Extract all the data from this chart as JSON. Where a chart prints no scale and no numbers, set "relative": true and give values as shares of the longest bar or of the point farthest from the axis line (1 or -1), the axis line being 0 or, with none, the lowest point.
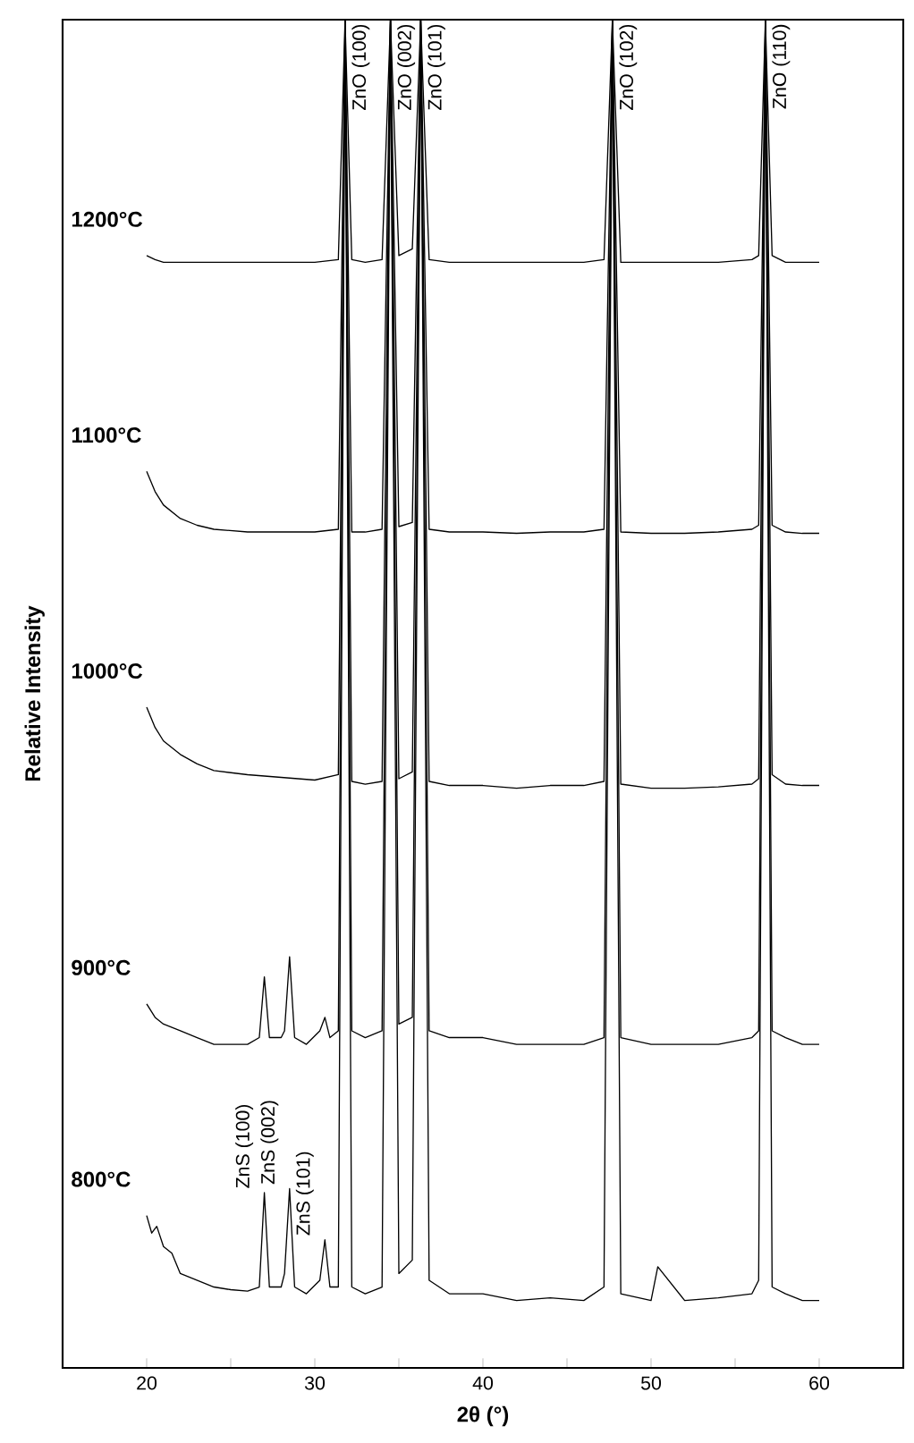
{
  "chart_data": {
    "type": "line",
    "relative": true,
    "xlabel": "2θ (°)",
    "ylabel": "Relative Intensity",
    "xlim": [
      15,
      65
    ],
    "xticks": [
      20,
      {
        "value": 25,
        "label": null
      },
      30,
      {
        "value": 35,
        "label": null
      },
      40,
      {
        "value": 45,
        "label": null
      },
      50,
      {
        "value": 55,
        "label": null
      },
      60
    ],
    "series": [
      {
        "name": "1200°C",
        "color": "#000000",
        "x": [
          20,
          20.5,
          21,
          22,
          23,
          24,
          26,
          28,
          30,
          31.4,
          31.8,
          32.2,
          33,
          34,
          34.5,
          35,
          35.8,
          36.3,
          36.8,
          38,
          40,
          42,
          44,
          46,
          47.2,
          47.7,
          48.2,
          50,
          52,
          54,
          56,
          56.4,
          56.8,
          57.2,
          58,
          59,
          60
        ],
        "values": [
          0.825,
          0.822,
          0.82,
          0.82,
          0.82,
          0.82,
          0.82,
          0.82,
          0.82,
          0.822,
          1,
          0.822,
          0.82,
          0.822,
          1,
          0.825,
          0.83,
          1,
          0.822,
          0.82,
          0.82,
          0.82,
          0.82,
          0.82,
          0.822,
          1,
          0.82,
          0.82,
          0.82,
          0.82,
          0.822,
          0.825,
          1,
          0.825,
          0.82,
          0.82,
          0.82
        ]
      },
      {
        "name": "1100°C",
        "color": "#000000",
        "x": [
          20,
          20.5,
          21,
          22,
          23,
          24,
          26,
          28,
          30,
          31.4,
          31.8,
          32.2,
          33,
          34,
          34.5,
          35,
          35.8,
          36.3,
          36.8,
          38,
          40,
          42,
          44,
          46,
          47.2,
          47.7,
          48.2,
          50,
          52,
          54,
          56,
          56.4,
          56.8,
          57.2,
          58,
          59,
          60
        ],
        "values": [
          0.665,
          0.65,
          0.64,
          0.63,
          0.625,
          0.622,
          0.62,
          0.62,
          0.62,
          0.622,
          1,
          0.62,
          0.62,
          0.622,
          1,
          0.624,
          0.627,
          1,
          0.622,
          0.62,
          0.62,
          0.619,
          0.62,
          0.62,
          0.622,
          1,
          0.62,
          0.619,
          0.619,
          0.62,
          0.622,
          0.625,
          1,
          0.625,
          0.62,
          0.619,
          0.619
        ]
      },
      {
        "name": "1000°C",
        "color": "#000000",
        "x": [
          20,
          20.5,
          21,
          22,
          23,
          24,
          26,
          28,
          30,
          31.4,
          31.8,
          32.2,
          33,
          34,
          34.5,
          35,
          35.8,
          36.3,
          36.8,
          38,
          40,
          42,
          44,
          46,
          47.2,
          47.7,
          48.2,
          50,
          52,
          54,
          56,
          56.4,
          56.8,
          57.2,
          58,
          59,
          60
        ],
        "values": [
          0.49,
          0.475,
          0.465,
          0.455,
          0.448,
          0.443,
          0.44,
          0.438,
          0.436,
          0.44,
          1,
          0.435,
          0.433,
          0.435,
          1,
          0.437,
          0.442,
          1,
          0.435,
          0.432,
          0.432,
          0.43,
          0.432,
          0.432,
          0.435,
          1,
          0.433,
          0.43,
          0.43,
          0.431,
          0.433,
          0.437,
          1,
          0.44,
          0.433,
          0.432,
          0.432
        ]
      },
      {
        "name": "900°C",
        "color": "#000000",
        "x": [
          20,
          20.5,
          21,
          22,
          23,
          24,
          25,
          26,
          26.7,
          27,
          27.3,
          28,
          28.2,
          28.5,
          28.8,
          29.5,
          30.3,
          30.6,
          30.9,
          31.4,
          31.8,
          32.2,
          33,
          34,
          34.5,
          35,
          35.8,
          36.3,
          36.8,
          38,
          40,
          42,
          44,
          46,
          47.2,
          47.7,
          48.2,
          50,
          52,
          54,
          56,
          56.4,
          56.8,
          57.2,
          58,
          59,
          60
        ],
        "values": [
          0.27,
          0.26,
          0.255,
          0.25,
          0.245,
          0.24,
          0.24,
          0.24,
          0.245,
          0.29,
          0.245,
          0.245,
          0.25,
          0.305,
          0.245,
          0.24,
          0.25,
          0.26,
          0.245,
          0.25,
          1,
          0.25,
          0.245,
          0.25,
          1,
          0.255,
          0.26,
          1,
          0.25,
          0.245,
          0.245,
          0.24,
          0.24,
          0.24,
          0.245,
          1,
          0.245,
          0.24,
          0.24,
          0.24,
          0.245,
          0.25,
          1,
          0.25,
          0.245,
          0.24,
          0.24
        ]
      },
      {
        "name": "800°C",
        "color": "#000000",
        "x": [
          20,
          20.3,
          20.6,
          21,
          21.5,
          22,
          23,
          24,
          25,
          26,
          26.7,
          27,
          27.3,
          28,
          28.2,
          28.5,
          28.8,
          29.5,
          30.3,
          30.6,
          30.9,
          31.4,
          31.8,
          32.2,
          33,
          34,
          34.5,
          35,
          35.8,
          36.3,
          36.8,
          38,
          40,
          42,
          44,
          46,
          47.2,
          47.7,
          48.2,
          50,
          50.4,
          52,
          54,
          56,
          56.4,
          56.8,
          57.2,
          58,
          59,
          60
        ],
        "values": [
          0.113,
          0.1,
          0.105,
          0.09,
          0.085,
          0.07,
          0.065,
          0.06,
          0.058,
          0.057,
          0.06,
          0.13,
          0.06,
          0.06,
          0.07,
          0.133,
          0.06,
          0.055,
          0.065,
          0.095,
          0.06,
          0.06,
          1,
          0.06,
          0.055,
          0.06,
          1,
          0.07,
          0.08,
          1,
          0.065,
          0.055,
          0.055,
          0.05,
          0.052,
          0.05,
          0.06,
          1,
          0.055,
          0.05,
          0.075,
          0.05,
          0.052,
          0.055,
          0.065,
          1,
          0.06,
          0.055,
          0.05,
          0.05
        ]
      }
    ],
    "annotations": [
      {
        "text": "ZnO (100)",
        "x": 31.8,
        "y": 1
      },
      {
        "text": "ZnO (002)",
        "x": 34.5,
        "y": 1
      },
      {
        "text": "ZnO (101)",
        "x": 36.3,
        "y": 1
      },
      {
        "text": "ZnO (102)",
        "x": 47.7,
        "y": 1
      },
      {
        "text": "ZnO (110)",
        "x": 56.8,
        "y": 1
      },
      {
        "text": "ZnS (100)",
        "x": 27,
        "y": 0.13
      },
      {
        "text": "ZnS (002)",
        "x": 28.5,
        "y": 0.133
      },
      {
        "text": "ZnS (101)",
        "x": 30.6,
        "y": 0.095
      }
    ]
  }
}
